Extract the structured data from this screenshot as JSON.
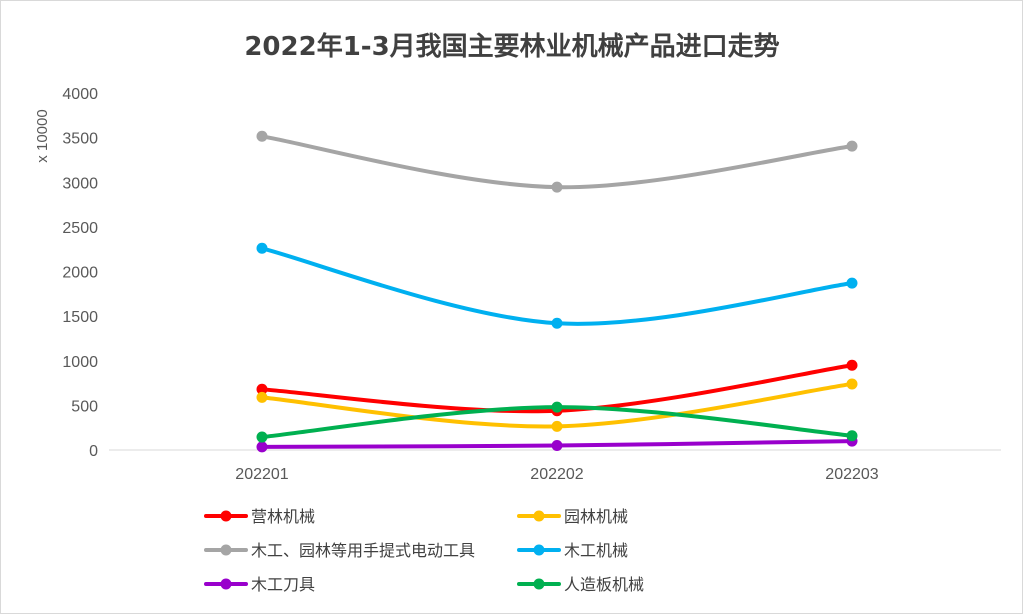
{
  "chart_data": {
    "type": "line",
    "title": "2022年1-3月我国主要林业机械产品进口走势",
    "xlabel": "",
    "ylabel": "x 10000",
    "categories": [
      "202201",
      "202202",
      "202203"
    ],
    "ylim": [
      0,
      4000
    ],
    "yticks": [
      0,
      500,
      1000,
      1500,
      2000,
      2500,
      3000,
      3500,
      4000
    ],
    "grid": false,
    "smooth": true,
    "legend_position": "bottom",
    "series": [
      {
        "name": "营林机械",
        "color": "#ff0000",
        "values": [
          680,
          440,
          950
        ]
      },
      {
        "name": "园林机械",
        "color": "#ffc000",
        "values": [
          590,
          265,
          740
        ]
      },
      {
        "name": "木工、园林等用手提式电动工具",
        "color": "#a5a5a5",
        "values": [
          3515,
          2945,
          3405
        ]
      },
      {
        "name": "木工机械",
        "color": "#00b0f0",
        "values": [
          2260,
          1420,
          1870
        ]
      },
      {
        "name": "木工刀具",
        "color": "#9900cc",
        "values": [
          35,
          50,
          100
        ]
      },
      {
        "name": "人造板机械",
        "color": "#00b050",
        "values": [
          145,
          480,
          160
        ]
      }
    ]
  }
}
